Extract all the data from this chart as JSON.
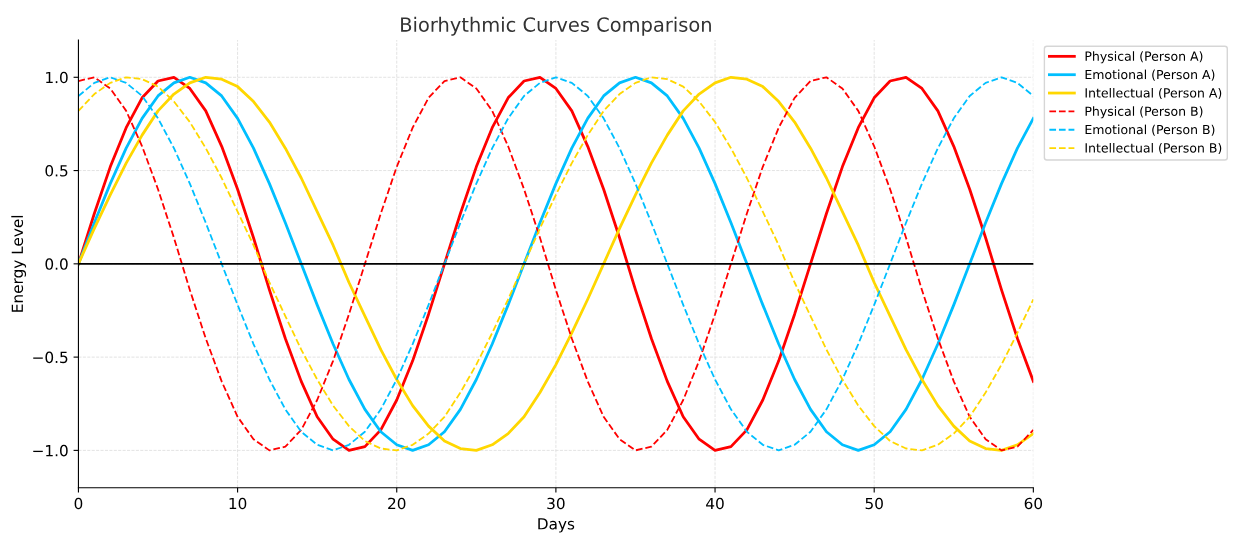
{
  "chart_data": {
    "type": "line",
    "title": "Biorhythmic Curves Comparison",
    "xlabel": "Days",
    "ylabel": "Energy Level",
    "x": [
      0,
      1,
      2,
      3,
      4,
      5,
      6,
      7,
      8,
      9,
      10,
      11,
      12,
      13,
      14,
      15,
      16,
      17,
      18,
      19,
      20,
      21,
      22,
      23,
      24,
      25,
      26,
      27,
      28,
      29,
      30,
      31,
      32,
      33,
      34,
      35,
      36,
      37,
      38,
      39,
      40,
      41,
      42,
      43,
      44,
      45,
      46,
      47,
      48,
      49,
      50,
      51,
      52,
      53,
      54,
      55,
      56,
      57,
      58,
      59,
      60
    ],
    "series": [
      {
        "name": "Physical (Person A)",
        "color": "#ff0000",
        "line_style": "solid",
        "values": [
          0,
          0.27,
          0.52,
          0.73,
          0.89,
          0.98,
          1.0,
          0.94,
          0.82,
          0.63,
          0.4,
          0.14,
          -0.14,
          -0.4,
          -0.63,
          -0.82,
          -0.94,
          -1.0,
          -0.98,
          -0.89,
          -0.73,
          -0.52,
          -0.27,
          0,
          0.27,
          0.52,
          0.73,
          0.89,
          0.98,
          1.0,
          0.94,
          0.82,
          0.63,
          0.4,
          0.14,
          -0.14,
          -0.4,
          -0.63,
          -0.82,
          -0.94,
          -1.0,
          -0.98,
          -0.89,
          -0.73,
          -0.52,
          -0.27,
          0,
          0.27,
          0.52,
          0.73,
          0.89,
          0.98,
          1.0,
          0.94,
          0.82,
          0.63,
          0.4,
          0.14,
          -0.14,
          -0.4,
          -0.63
        ]
      },
      {
        "name": "Emotional (Person A)",
        "color": "#00bfff",
        "line_style": "solid",
        "values": [
          0,
          0.22,
          0.43,
          0.62,
          0.78,
          0.9,
          0.97,
          1.0,
          0.97,
          0.9,
          0.78,
          0.62,
          0.43,
          0.22,
          0,
          -0.22,
          -0.43,
          -0.62,
          -0.78,
          -0.9,
          -0.97,
          -1.0,
          -0.97,
          -0.9,
          -0.78,
          -0.62,
          -0.43,
          -0.22,
          0,
          0.22,
          0.43,
          0.62,
          0.78,
          0.9,
          0.97,
          1.0,
          0.97,
          0.9,
          0.78,
          0.62,
          0.43,
          0.22,
          0,
          -0.22,
          -0.43,
          -0.62,
          -0.78,
          -0.9,
          -0.97,
          -1.0,
          -0.97,
          -0.9,
          -0.78,
          -0.62,
          -0.43,
          -0.22,
          0,
          0.22,
          0.43,
          0.62,
          0.78
        ]
      },
      {
        "name": "Intellectual (Person A)",
        "color": "#ffd700",
        "line_style": "solid",
        "values": [
          0,
          0.19,
          0.37,
          0.54,
          0.69,
          0.82,
          0.91,
          0.97,
          1.0,
          0.99,
          0.95,
          0.87,
          0.76,
          0.62,
          0.46,
          0.28,
          0.1,
          -0.1,
          -0.28,
          -0.46,
          -0.62,
          -0.76,
          -0.87,
          -0.95,
          -0.99,
          -1.0,
          -0.97,
          -0.91,
          -0.82,
          -0.69,
          -0.54,
          -0.37,
          -0.19,
          0,
          0.19,
          0.37,
          0.54,
          0.69,
          0.82,
          0.91,
          0.97,
          1.0,
          0.99,
          0.95,
          0.87,
          0.76,
          0.62,
          0.46,
          0.28,
          0.1,
          -0.1,
          -0.28,
          -0.46,
          -0.62,
          -0.76,
          -0.87,
          -0.95,
          -0.99,
          -1.0,
          -0.97,
          -0.91
        ]
      },
      {
        "name": "Physical (Person B)",
        "color": "#ff0000",
        "line_style": "dashed",
        "values": [
          0.98,
          1.0,
          0.94,
          0.82,
          0.63,
          0.4,
          0.14,
          -0.14,
          -0.4,
          -0.63,
          -0.82,
          -0.94,
          -1.0,
          -0.98,
          -0.89,
          -0.73,
          -0.52,
          -0.27,
          0,
          0.27,
          0.52,
          0.73,
          0.89,
          0.98,
          1.0,
          0.94,
          0.82,
          0.63,
          0.4,
          0.14,
          -0.14,
          -0.4,
          -0.63,
          -0.82,
          -0.94,
          -1.0,
          -0.98,
          -0.89,
          -0.73,
          -0.52,
          -0.27,
          0,
          0.27,
          0.52,
          0.73,
          0.89,
          0.98,
          1.0,
          0.94,
          0.82,
          0.63,
          0.4,
          0.14,
          -0.14,
          -0.4,
          -0.63,
          -0.82,
          -0.94,
          -1.0,
          -0.98,
          -0.89
        ]
      },
      {
        "name": "Emotional (Person B)",
        "color": "#00bfff",
        "line_style": "dashed",
        "values": [
          0.9,
          0.97,
          1.0,
          0.97,
          0.9,
          0.78,
          0.62,
          0.43,
          0.22,
          0,
          -0.22,
          -0.43,
          -0.62,
          -0.78,
          -0.9,
          -0.97,
          -1.0,
          -0.97,
          -0.9,
          -0.78,
          -0.62,
          -0.43,
          -0.22,
          0,
          0.22,
          0.43,
          0.62,
          0.78,
          0.9,
          0.97,
          1.0,
          0.97,
          0.9,
          0.78,
          0.62,
          0.43,
          0.22,
          0,
          -0.22,
          -0.43,
          -0.62,
          -0.78,
          -0.9,
          -0.97,
          -1.0,
          -0.97,
          -0.9,
          -0.78,
          -0.62,
          -0.43,
          -0.22,
          0,
          0.22,
          0.43,
          0.62,
          0.78,
          0.9,
          0.97,
          1.0,
          0.97,
          0.9
        ]
      },
      {
        "name": "Intellectual (Person B)",
        "color": "#ffd700",
        "line_style": "dashed",
        "values": [
          0.82,
          0.91,
          0.97,
          1.0,
          0.99,
          0.95,
          0.87,
          0.76,
          0.62,
          0.46,
          0.28,
          0.1,
          -0.1,
          -0.28,
          -0.46,
          -0.62,
          -0.76,
          -0.87,
          -0.95,
          -0.99,
          -1.0,
          -0.97,
          -0.91,
          -0.82,
          -0.69,
          -0.54,
          -0.37,
          -0.19,
          0,
          0.19,
          0.37,
          0.54,
          0.69,
          0.82,
          0.91,
          0.97,
          1.0,
          0.99,
          0.95,
          0.87,
          0.76,
          0.62,
          0.46,
          0.28,
          0.1,
          -0.1,
          -0.28,
          -0.46,
          -0.62,
          -0.76,
          -0.87,
          -0.95,
          -0.99,
          -1.0,
          -0.97,
          -0.91,
          -0.82,
          -0.69,
          -0.54,
          -0.37,
          -0.19
        ]
      }
    ],
    "xlim": [
      0,
      60
    ],
    "xticks": [
      0,
      10,
      20,
      30,
      40,
      50,
      60
    ],
    "ylim": [
      -1.2,
      1.2
    ],
    "yticks": [
      {
        "value": -1.0,
        "label": "−1.0"
      },
      {
        "value": -0.5,
        "label": "−0.5"
      },
      {
        "value": 0,
        "label": "0.0"
      },
      {
        "value": 0.5,
        "label": "0.5"
      },
      {
        "value": 1.0,
        "label": "1.0"
      }
    ],
    "ref_lines": [
      {
        "axis": "y",
        "value": 0,
        "color": "#000000",
        "line_style": "solid"
      }
    ],
    "grid": true,
    "legend": "top right",
    "marker": "none"
  }
}
